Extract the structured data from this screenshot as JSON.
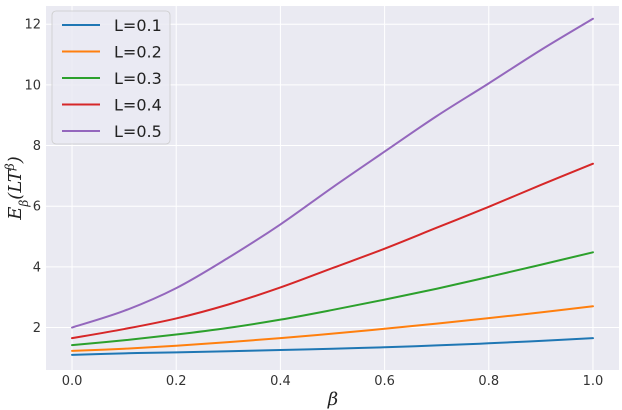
{
  "chart_data": {
    "type": "line",
    "title": "",
    "xlabel": "β",
    "ylabel": "E_β(LT^β)",
    "xlim": [
      -0.05,
      1.05
    ],
    "ylim": [
      0.6,
      12.6
    ],
    "x_ticks": [
      0.0,
      0.2,
      0.4,
      0.6,
      0.8,
      1.0
    ],
    "x_tick_labels": [
      "0.0",
      "0.2",
      "0.4",
      "0.6",
      "0.8",
      "1.0"
    ],
    "y_ticks": [
      2,
      4,
      6,
      8,
      10,
      12
    ],
    "y_tick_labels": [
      "2",
      "4",
      "6",
      "8",
      "10",
      "12"
    ],
    "grid": true,
    "legend_position": "top-left",
    "x": [
      0.0,
      0.1,
      0.2,
      0.3,
      0.4,
      0.5,
      0.6,
      0.7,
      0.8,
      0.9,
      1.0
    ],
    "series": [
      {
        "name": "L=0.1",
        "color": "#1f77b4",
        "values": [
          1.1,
          1.15,
          1.18,
          1.22,
          1.26,
          1.3,
          1.35,
          1.41,
          1.48,
          1.56,
          1.65
        ]
      },
      {
        "name": "L=0.2",
        "color": "#ff7f0e",
        "values": [
          1.23,
          1.3,
          1.4,
          1.52,
          1.65,
          1.8,
          1.96,
          2.13,
          2.31,
          2.5,
          2.7
        ]
      },
      {
        "name": "L=0.3",
        "color": "#2ca02c",
        "values": [
          1.42,
          1.58,
          1.77,
          1.99,
          2.26,
          2.58,
          2.92,
          3.28,
          3.67,
          4.07,
          4.48
        ]
      },
      {
        "name": "L=0.4",
        "color": "#d62728",
        "values": [
          1.65,
          1.95,
          2.3,
          2.76,
          3.32,
          3.96,
          4.6,
          5.29,
          5.98,
          6.7,
          7.4
        ]
      },
      {
        "name": "L=0.5",
        "color": "#9467bd",
        "values": [
          2.0,
          2.55,
          3.3,
          4.3,
          5.4,
          6.62,
          7.8,
          8.97,
          10.05,
          11.15,
          12.18
        ]
      }
    ]
  }
}
